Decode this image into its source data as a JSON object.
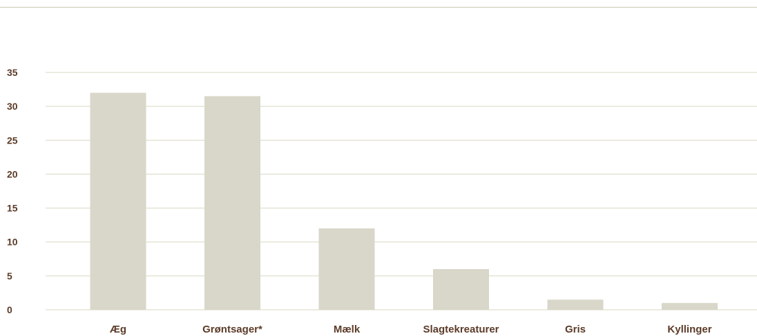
{
  "chart_data": {
    "type": "bar",
    "title": "",
    "xlabel": "",
    "ylabel": "",
    "categories": [
      "Æg",
      "Grøntsager*",
      "Mælk",
      "Slagtekreaturer",
      "Gris",
      "Kyllinger"
    ],
    "values": [
      32,
      31.5,
      12,
      6,
      1.5,
      1
    ],
    "ylim": [
      0,
      35
    ],
    "yticks": [
      0,
      5,
      10,
      15,
      20,
      25,
      30,
      35
    ],
    "grid": true,
    "colors": {
      "bar": "#d9d7c9",
      "gridline": "#d9d7c2",
      "label": "#5b3b28",
      "rule": "#c9c8b0"
    }
  }
}
